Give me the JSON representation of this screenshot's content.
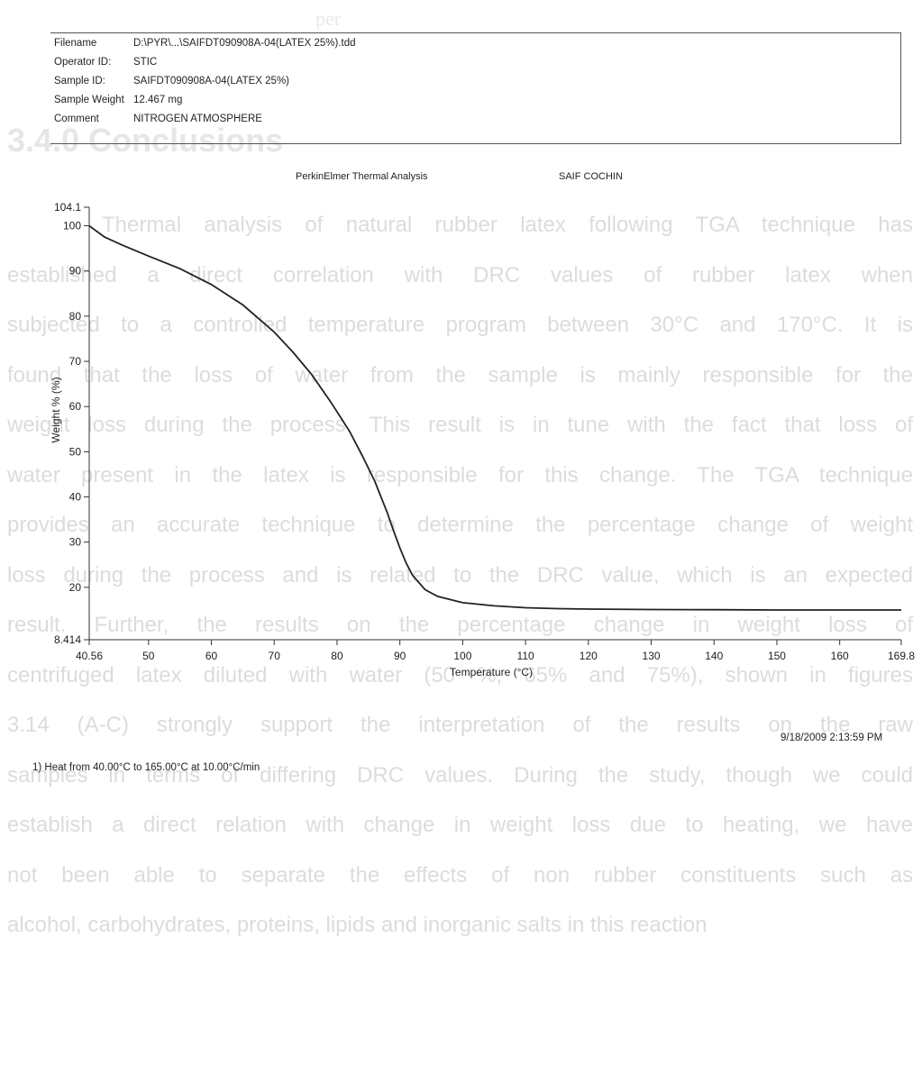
{
  "background_text": {
    "top_fragment": "per",
    "heading": "3.4.0 Conclusions",
    "lines": [
      "Thermal analysis of natural rubber latex following TGA technique has",
      "established a direct correlation with DRC values of rubber latex when",
      "subjected to a controlled temperature program between 30°C and 170°C. It is",
      "found that the loss of water from the sample is mainly responsible for the",
      "weight loss during the process. This result is in tune with the fact that loss of",
      "water present in the latex is responsible for this change. The TGA technique",
      "provides an accurate technique to determine the percentage change of weight",
      "loss during the process and is related to the DRC value, which is an expected",
      "result. Further, the results on the percentage change in weight loss of",
      "centrifuged latex diluted with water (50 %, 65% and 75%), shown in figures",
      "3.14 (A-C) strongly support the interpretation of the results on the raw",
      "samples in terms of differing DRC values. During the study, though we could",
      "establish a direct relation with change in weight loss due to heating, we have",
      "not been able to separate the effects of non rubber constituents such as",
      "alcohol, carbohydrates, proteins, lipids and inorganic salts in this reaction"
    ]
  },
  "header": {
    "rows": [
      {
        "label": "Filename",
        "value": "D:\\PYR\\...\\SAIFDT090908A-04(LATEX 25%).tdd"
      },
      {
        "label": "Operator ID:",
        "value": "STIC"
      },
      {
        "label": "Sample ID:",
        "value": "SAIFDT090908A-04(LATEX 25%)"
      },
      {
        "label": "Sample Weight",
        "value": "12.467 mg"
      },
      {
        "label": "Comment",
        "value": "NITROGEN ATMOSPHERE"
      }
    ]
  },
  "chart_heading": {
    "instrument": "PerkinElmer Thermal Analysis",
    "lab": "SAIF COCHIN"
  },
  "footer": {
    "timestamp": "9/18/2009 2:13:59 PM",
    "method": "1) Heat from 40.00°C to 165.00°C at 10.00°C/min"
  },
  "colors": {
    "curve": "#222222",
    "axis": "#333333",
    "background_text": "#dcdcdc"
  },
  "chart_data": {
    "type": "line",
    "title": "",
    "xlabel": "Temperature (°C)",
    "ylabel": "Weight % (%)",
    "xlim": [
      40.56,
      169.8
    ],
    "ylim": [
      8.414,
      104.1
    ],
    "x_ticks": [
      "40.56",
      "50",
      "60",
      "70",
      "80",
      "90",
      "100",
      "110",
      "120",
      "130",
      "140",
      "150",
      "160",
      "169.8"
    ],
    "y_ticks": [
      "8.414",
      "20",
      "30",
      "40",
      "50",
      "60",
      "70",
      "80",
      "90",
      "100",
      "104.1"
    ],
    "grid": false,
    "series": [
      {
        "name": "",
        "x": [
          40.56,
          43,
          46,
          50,
          55,
          60,
          65,
          70,
          73,
          76,
          79,
          82,
          84,
          86,
          88,
          89,
          90,
          91,
          92,
          94,
          96,
          100,
          105,
          110,
          115,
          120,
          130,
          140,
          150,
          160,
          169.8
        ],
        "y": [
          100,
          97.5,
          95.6,
          93.3,
          90.5,
          87,
          82.5,
          76.5,
          72,
          67,
          61,
          54.5,
          49.2,
          43.5,
          36.5,
          32.5,
          28.7,
          25.4,
          22.7,
          19.5,
          18,
          16.6,
          15.9,
          15.5,
          15.3,
          15.2,
          15.1,
          15.05,
          15.0,
          15.0,
          15.0
        ]
      }
    ]
  }
}
